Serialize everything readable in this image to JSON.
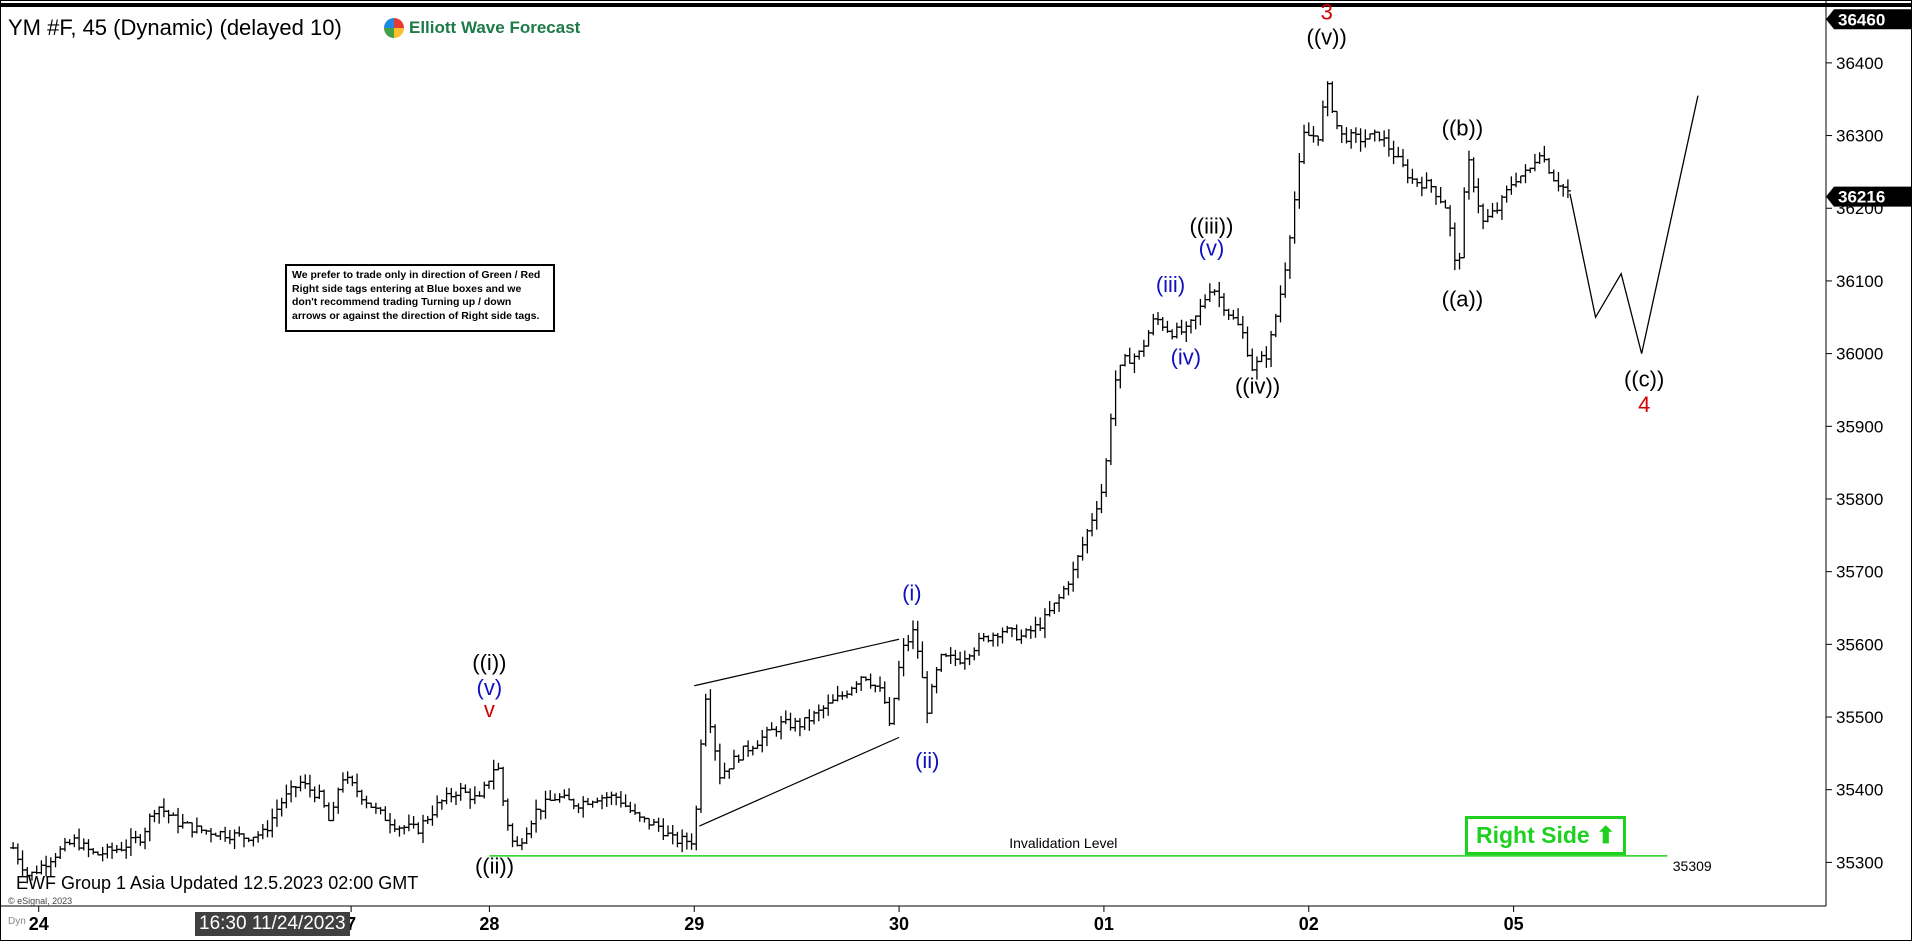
{
  "header": {
    "title": "YM #F, 45 (Dynamic) (delayed 10)",
    "brand": "Elliott Wave Forecast"
  },
  "note": "We prefer to trade only in direction of Green / Red Right side tags entering at Blue boxes and we don't recommend trading Turning up / down arrows or against the direction of Right side tags.",
  "footer": {
    "updated": "EWF Group 1 Asia Updated 12.5.2023 02:00 GMT",
    "copyright": "© eSignal, 2023",
    "dyn": "Dyn",
    "crosshair_time": "16:30 11/24/2023"
  },
  "right_side_label": "Right Side",
  "colors": {
    "bullish": "#1fd11f",
    "wave_red": "#d40000",
    "wave_blue": "#1010c0",
    "wave_black": "#000000"
  },
  "chart_data": {
    "type": "bar",
    "symbol": "YM #F",
    "interval": "45",
    "ylim": [
      35240,
      36470
    ],
    "y_ticks": [
      35300,
      35400,
      35500,
      35600,
      35700,
      35800,
      35900,
      36000,
      36100,
      36200,
      36300,
      36400
    ],
    "x_tick_labels": [
      {
        "label": "24",
        "x": 0.5
      },
      {
        "label": "7",
        "x": 6.6
      },
      {
        "label": "28",
        "x": 9.3
      },
      {
        "label": "29",
        "x": 13.3
      },
      {
        "label": "30",
        "x": 17.3
      },
      {
        "label": "01",
        "x": 21.3
      },
      {
        "label": "02",
        "x": 25.3
      },
      {
        "label": "05",
        "x": 29.3
      }
    ],
    "price_boxes": [
      {
        "label": "36460",
        "value": 36460
      },
      {
        "label": "36216",
        "value": 36216
      }
    ],
    "invalidation": {
      "label": "Invalidation Level",
      "value_label": "35309",
      "value": 35309,
      "x_start": 9.3,
      "x_end": 32.3
    },
    "ohlc_path": [
      [
        0,
        35320
      ],
      [
        0.3,
        35280
      ],
      [
        0.8,
        35310
      ],
      [
        1.2,
        35330
      ],
      [
        1.6,
        35310
      ],
      [
        2.1,
        35320
      ],
      [
        2.5,
        35335
      ],
      [
        2.8,
        35380
      ],
      [
        3.2,
        35355
      ],
      [
        3.6,
        35345
      ],
      [
        4.1,
        35340
      ],
      [
        4.5,
        35335
      ],
      [
        4.9,
        35340
      ],
      [
        5.2,
        35380
      ],
      [
        5.6,
        35410
      ],
      [
        6.0,
        35390
      ],
      [
        6.2,
        35350
      ],
      [
        6.4,
        35420
      ],
      [
        6.7,
        35400
      ],
      [
        7.1,
        35370
      ],
      [
        7.5,
        35350
      ],
      [
        7.9,
        35345
      ],
      [
        8.3,
        35380
      ],
      [
        8.7,
        35400
      ],
      [
        9.1,
        35385
      ],
      [
        9.45,
        35440
      ],
      [
        9.6,
        35370
      ],
      [
        9.8,
        35315
      ],
      [
        10.2,
        35370
      ],
      [
        10.6,
        35390
      ],
      [
        11.0,
        35380
      ],
      [
        11.4,
        35390
      ],
      [
        11.8,
        35390
      ],
      [
        12.2,
        35360
      ],
      [
        12.6,
        35350
      ],
      [
        12.9,
        35330
      ],
      [
        13.3,
        35330
      ],
      [
        13.5,
        35540
      ],
      [
        13.8,
        35420
      ],
      [
        14.2,
        35450
      ],
      [
        14.6,
        35470
      ],
      [
        15.0,
        35490
      ],
      [
        15.4,
        35490
      ],
      [
        15.8,
        35510
      ],
      [
        16.2,
        35530
      ],
      [
        16.6,
        35560
      ],
      [
        17.0,
        35530
      ],
      [
        17.1,
        35480
      ],
      [
        17.35,
        35590
      ],
      [
        17.6,
        35620
      ],
      [
        17.85,
        35510
      ],
      [
        18.1,
        35580
      ],
      [
        18.5,
        35580
      ],
      [
        18.9,
        35605
      ],
      [
        19.3,
        35620
      ],
      [
        19.7,
        35610
      ],
      [
        20.1,
        35630
      ],
      [
        20.4,
        35660
      ],
      [
        20.7,
        35700
      ],
      [
        21.0,
        35760
      ],
      [
        21.3,
        35820
      ],
      [
        21.5,
        35960
      ],
      [
        21.7,
        35990
      ],
      [
        22.0,
        36000
      ],
      [
        22.3,
        36050
      ],
      [
        22.6,
        36030
      ],
      [
        22.9,
        36030
      ],
      [
        23.1,
        36050
      ],
      [
        23.4,
        36095
      ],
      [
        23.7,
        36060
      ],
      [
        24.0,
        36030
      ],
      [
        24.2,
        35980
      ],
      [
        24.5,
        36000
      ],
      [
        24.8,
        36100
      ],
      [
        25.0,
        36200
      ],
      [
        25.2,
        36300
      ],
      [
        25.5,
        36300
      ],
      [
        25.65,
        36370
      ],
      [
        25.9,
        36300
      ],
      [
        26.3,
        36295
      ],
      [
        26.7,
        36300
      ],
      [
        27.0,
        36270
      ],
      [
        27.3,
        36240
      ],
      [
        27.7,
        36230
      ],
      [
        28.0,
        36200
      ],
      [
        28.2,
        36100
      ],
      [
        28.4,
        36270
      ],
      [
        28.7,
        36180
      ],
      [
        29.0,
        36200
      ],
      [
        29.3,
        36240
      ],
      [
        29.6,
        36250
      ],
      [
        29.8,
        36280
      ],
      [
        30.1,
        36240
      ],
      [
        30.4,
        36220
      ]
    ],
    "projection": [
      [
        30.4,
        36220
      ],
      [
        30.9,
        36050
      ],
      [
        31.4,
        36110
      ],
      [
        31.8,
        36000
      ],
      [
        32.9,
        36355
      ]
    ],
    "wedge": [
      {
        "x1": 13.3,
        "y1": 35543,
        "x2": 17.3,
        "y2": 35607
      },
      {
        "x1": 13.4,
        "y1": 35350,
        "x2": 17.3,
        "y2": 35472
      }
    ],
    "wave_labels": [
      {
        "text": "((i))",
        "x": 9.3,
        "y": 35565,
        "color": "black"
      },
      {
        "text": "(v)",
        "x": 9.3,
        "y": 35530,
        "color": "blue"
      },
      {
        "text": "v",
        "x": 9.3,
        "y": 35500,
        "color": "red"
      },
      {
        "text": "((ii))",
        "x": 9.4,
        "y": 35285,
        "color": "black"
      },
      {
        "text": "(i)",
        "x": 17.55,
        "y": 35660,
        "color": "blue"
      },
      {
        "text": "(ii)",
        "x": 17.85,
        "y": 35430,
        "color": "blue"
      },
      {
        "text": "(iii)",
        "x": 22.6,
        "y": 36085,
        "color": "blue"
      },
      {
        "text": "(iv)",
        "x": 22.9,
        "y": 35985,
        "color": "blue"
      },
      {
        "text": "((iii))",
        "x": 23.4,
        "y": 36165,
        "color": "black"
      },
      {
        "text": "(v)",
        "x": 23.4,
        "y": 36135,
        "color": "blue"
      },
      {
        "text": "((iv))",
        "x": 24.3,
        "y": 35945,
        "color": "black"
      },
      {
        "text": "3",
        "x": 25.65,
        "y": 36460,
        "color": "red"
      },
      {
        "text": "((v))",
        "x": 25.65,
        "y": 36425,
        "color": "black"
      },
      {
        "text": "((b))",
        "x": 28.3,
        "y": 36300,
        "color": "black"
      },
      {
        "text": "((a))",
        "x": 28.3,
        "y": 36065,
        "color": "black"
      },
      {
        "text": "((c))",
        "x": 31.85,
        "y": 35955,
        "color": "black"
      },
      {
        "text": "4",
        "x": 31.85,
        "y": 35920,
        "color": "red"
      }
    ]
  }
}
